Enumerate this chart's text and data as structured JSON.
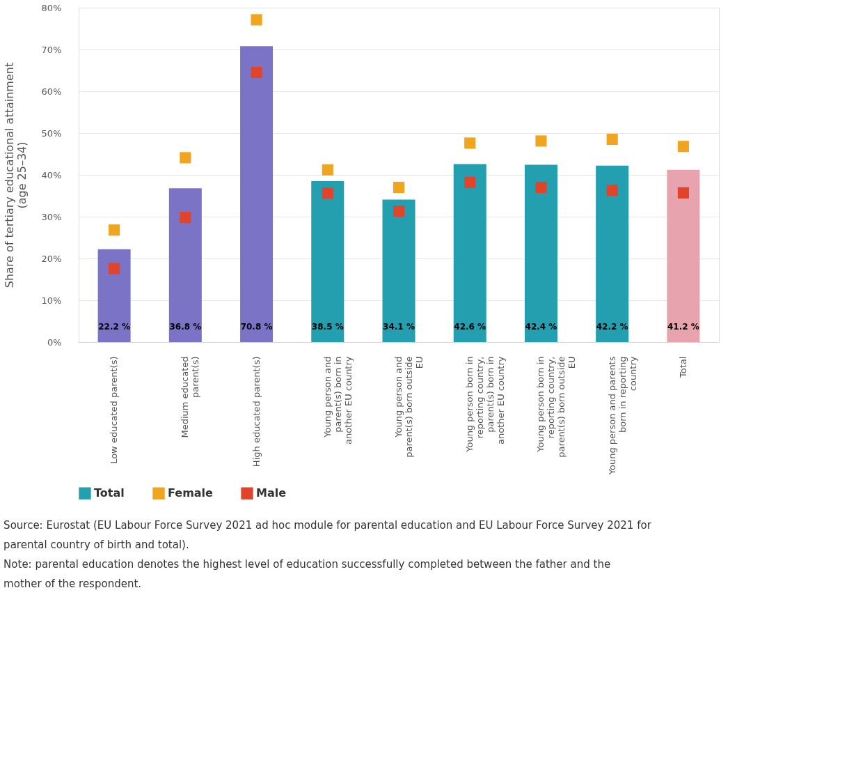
{
  "chart_data": {
    "type": "bar",
    "ylabel": "Share of tertiary educational attainment (age 25–34)",
    "categories": [
      "Low educated parent(s)",
      "Medium educated parent(s)",
      "High educated parent(s)",
      "Young person and parent(s) born in another EU country",
      "Young person and parent(s) born outside EU",
      "Young person born in reporting country, parent(s) born in another EU country",
      "Young person born in reporting country, parent(s) born outside EU",
      "Young person and parents born in reporting country",
      "Total"
    ],
    "series": [
      {
        "name": "Total",
        "color": "#239fb0",
        "colors": [
          "#7b74c6",
          "#7b74c6",
          "#7b74c6",
          "#239fb0",
          "#239fb0",
          "#239fb0",
          "#239fb0",
          "#239fb0",
          "#e8a4ae"
        ],
        "values": [
          22.2,
          36.8,
          70.8,
          38.5,
          34.1,
          42.6,
          42.4,
          42.2,
          41.2
        ],
        "value_labels": [
          "22.2 %",
          "36.8 %",
          "70.8 %",
          "38.5 %",
          "34.1 %",
          "42.6 %",
          "42.4 %",
          "42.2 %",
          "41.2 %"
        ]
      },
      {
        "name": "Female",
        "type": "scatter",
        "color": "#f0a51e",
        "values": [
          26.8,
          44.1,
          77.1,
          41.2,
          37.0,
          47.6,
          48.1,
          48.5,
          46.8
        ]
      },
      {
        "name": "Male",
        "type": "scatter",
        "color": "#e0452b",
        "values": [
          17.6,
          29.8,
          64.5,
          35.6,
          31.3,
          38.2,
          37.0,
          36.3,
          35.7
        ]
      }
    ],
    "ylim": [
      0,
      80
    ],
    "yticks": [
      {
        "value": 0,
        "label": "0%"
      },
      {
        "value": 10,
        "label": "10%"
      },
      {
        "value": 20,
        "label": "20%"
      },
      {
        "value": 30,
        "label": "30%"
      },
      {
        "value": 40,
        "label": "40%"
      },
      {
        "value": 50,
        "label": "50%"
      },
      {
        "value": 60,
        "label": "60%"
      },
      {
        "value": 70,
        "label": "70%"
      },
      {
        "value": 80,
        "label": "80%"
      }
    ],
    "grid": "y",
    "marker": "square",
    "legend": "bottom",
    "annotations": [
      "Source: Eurostat (EU Labour Force Survey 2021 ad hoc module for parental education and EU Labour Force Survey 2021 for parental country of birth and total).",
      "Note: parental education denotes the highest level of education successfully completed between the father and the mother of the respondent."
    ]
  }
}
